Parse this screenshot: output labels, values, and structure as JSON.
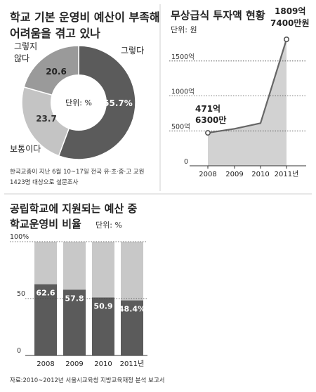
{
  "chart_data": [
    {
      "type": "pie",
      "title": "학교 기본 운영비 예산이 부족해 어려움을 겪고 있나",
      "title_lines": [
        "학교 기본 운영비 예산이 부족해",
        "어려움을 겪고 있나"
      ],
      "center_label": "단위: %",
      "slices": [
        {
          "label": "그렇다",
          "value": 55.7,
          "value_label": "55.7%",
          "color": "#5b5b5b"
        },
        {
          "label": "보통이다",
          "value": 23.7,
          "value_label": "23.7",
          "color": "#c4c4c4"
        },
        {
          "label": "그렇지 않다",
          "label_lines": [
            "그렇지",
            "않다"
          ],
          "value": 20.6,
          "value_label": "20.6",
          "color": "#9a9a9a"
        }
      ],
      "note_lines": [
        "한국교총이 지난 6월 10~17일 전국 유·초·중·고 교원",
        "1423명 대상으로 설문조사"
      ]
    },
    {
      "type": "area",
      "title": "무상급식 투자액 현황",
      "unit": "단위: 원",
      "x": [
        "2008",
        "2009",
        "2010",
        "2011년"
      ],
      "values": [
        471.63,
        530,
        610,
        1809.74
      ],
      "y_ticks": [
        0,
        500,
        1000,
        1500
      ],
      "y_tick_labels": [
        "0",
        "500억",
        "1000억",
        "1500억"
      ],
      "ylim": [
        0,
        1850
      ],
      "annotations": [
        {
          "index": 0,
          "lines": [
            "471억",
            "6300만"
          ]
        },
        {
          "index": 3,
          "lines": [
            "1809억",
            "7400만원"
          ]
        }
      ],
      "colors": {
        "area": "#d2d2d2",
        "line": "#666666"
      }
    },
    {
      "type": "bar",
      "title": "공립학교에 지원되는 예산 중 학교운영비 비율",
      "title_lines": [
        "공립학교에 지원되는 예산 중",
        "학교운영비 비율"
      ],
      "unit": "단위: %",
      "categories": [
        "2008",
        "2009",
        "2010",
        "2011년"
      ],
      "values": [
        62.6,
        57.8,
        50.9,
        48.4
      ],
      "value_labels": [
        "62.6",
        "57.8",
        "50.9",
        "48.4%"
      ],
      "y_ticks": [
        0,
        50,
        100
      ],
      "y_tick_labels": [
        "0",
        "50",
        "100%"
      ],
      "ylim": [
        0,
        100
      ],
      "colors": {
        "fill": "#5b5b5b",
        "remainder": "#c8c8c8"
      }
    }
  ],
  "source": "자료:2010~2012년 서울시교육청 지방교육재정 분석 보고서"
}
